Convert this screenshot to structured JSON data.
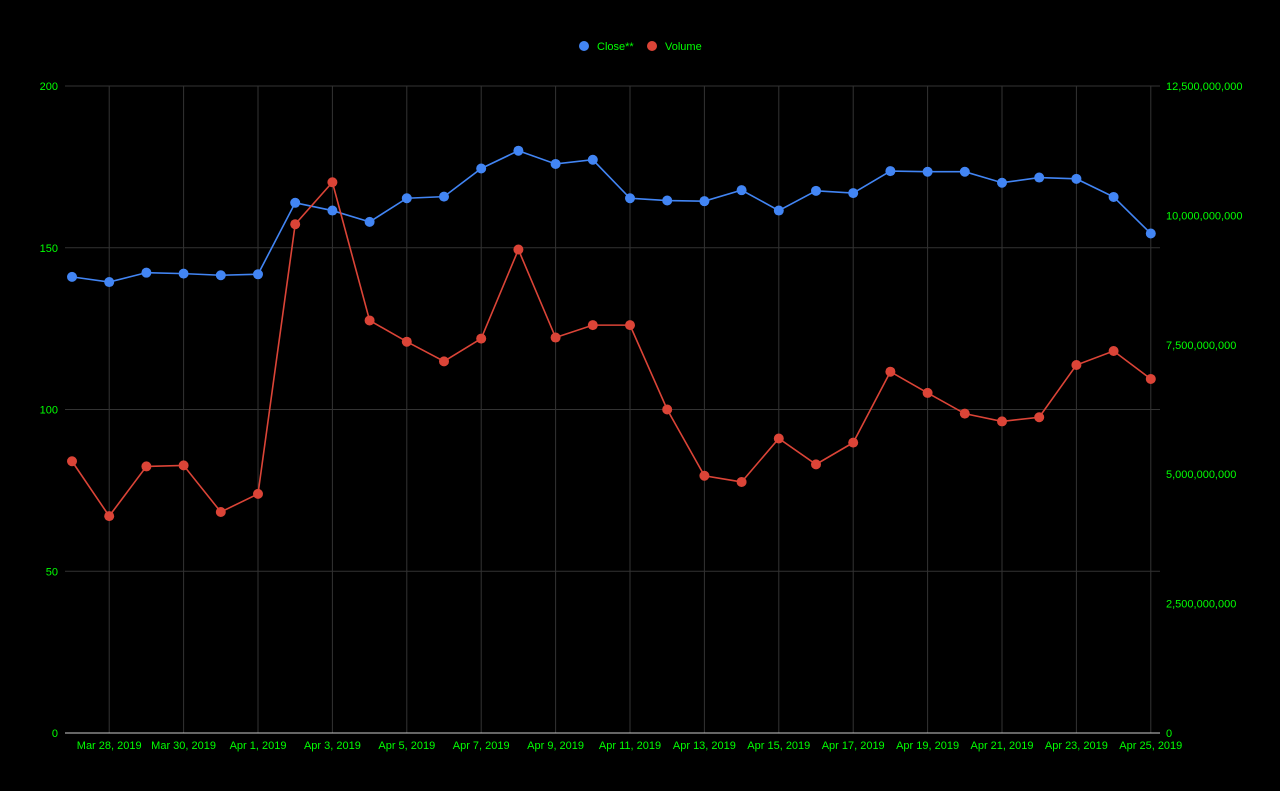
{
  "chart_data": {
    "type": "line",
    "x": [
      "Mar 27, 2019",
      "Mar 28, 2019",
      "Mar 29, 2019",
      "Mar 30, 2019",
      "Mar 31, 2019",
      "Apr 1, 2019",
      "Apr 2, 2019",
      "Apr 3, 2019",
      "Apr 4, 2019",
      "Apr 5, 2019",
      "Apr 6, 2019",
      "Apr 7, 2019",
      "Apr 8, 2019",
      "Apr 9, 2019",
      "Apr 10, 2019",
      "Apr 11, 2019",
      "Apr 12, 2019",
      "Apr 13, 2019",
      "Apr 14, 2019",
      "Apr 15, 2019",
      "Apr 16, 2019",
      "Apr 17, 2019",
      "Apr 18, 2019",
      "Apr 19, 2019",
      "Apr 20, 2019",
      "Apr 21, 2019",
      "Apr 22, 2019",
      "Apr 23, 2019",
      "Apr 24, 2019",
      "Apr 25, 2019"
    ],
    "x_tick_labels": [
      "Mar 28, 2019",
      "Mar 30, 2019",
      "Apr 1, 2019",
      "Apr 3, 2019",
      "Apr 5, 2019",
      "Apr 7, 2019",
      "Apr 9, 2019",
      "Apr 11, 2019",
      "Apr 13, 2019",
      "Apr 15, 2019",
      "Apr 17, 2019",
      "Apr 19, 2019",
      "Apr 21, 2019",
      "Apr 23, 2019",
      "Apr 25, 2019"
    ],
    "series": [
      {
        "name": "Close**",
        "axis": "left",
        "color": "#4285f4",
        "values": [
          141.0,
          139.4,
          142.3,
          142.0,
          141.5,
          141.8,
          163.9,
          161.5,
          158.0,
          165.3,
          165.8,
          174.5,
          180.0,
          175.9,
          177.2,
          165.3,
          164.6,
          164.4,
          167.8,
          161.5,
          167.6,
          166.9,
          173.7,
          173.5,
          173.5,
          170.1,
          171.7,
          171.3,
          165.7,
          154.4
        ]
      },
      {
        "name": "Volume",
        "axis": "right",
        "color": "#db4437",
        "values": [
          5250000000,
          4190000000,
          5150000000,
          5170000000,
          4270000000,
          4620000000,
          9830000000,
          10640000000,
          7970000000,
          7560000000,
          7180000000,
          7620000000,
          9340000000,
          7640000000,
          7880000000,
          7880000000,
          6250000000,
          4970000000,
          4850000000,
          5690000000,
          5190000000,
          5610000000,
          6980000000,
          6570000000,
          6170000000,
          6020000000,
          6100000000,
          7110000000,
          7380000000,
          6840000000
        ]
      }
    ],
    "y_left": {
      "ticks": [
        "0",
        "50",
        "100",
        "150",
        "200"
      ],
      "ylim": [
        0,
        200
      ]
    },
    "y_right": {
      "ticks": [
        "0",
        "2,500,000,000",
        "5,000,000,000",
        "7,500,000,000",
        "10,000,000,000",
        "12,500,000,000"
      ],
      "ylim": [
        0,
        12500000000
      ]
    },
    "legend": {
      "placement": "top-center"
    },
    "grid": true,
    "colors": {
      "background": "#000000",
      "gridline": "#333333",
      "axis_text": "#00ff00",
      "legend_text": "#00ff00"
    }
  }
}
